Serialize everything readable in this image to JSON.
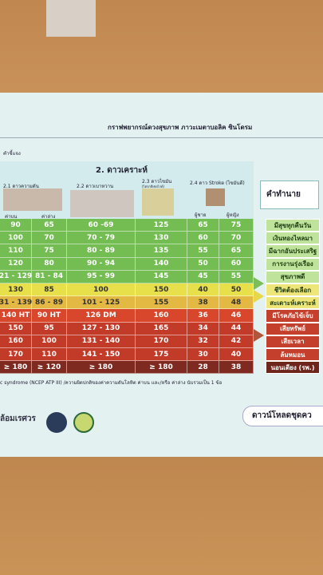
{
  "header": {
    "title": "กราฟพยากรณ์ดวงสุขภาพ ภาวะเมตาบอลิค ซินโดรม",
    "instruction": "คำชี้แจง",
    "section": "2. ดาวเคราะห์",
    "prediction_heading": "คำทำนาย"
  },
  "columns": {
    "bp": "2.1 ดาวความดัน",
    "sugar": "2.2 ดาวเบาหวาน",
    "fat": "2.3 ดาวไขมัน",
    "fat_note": "(ไตรกลีเซอไรด์)",
    "stroke": "2.4 ดาว Stroke (ไขมันดี)",
    "upper": "ค่าบน",
    "lower": "ค่าล่าง",
    "male": "ผู้ชาย",
    "female": "ผู้หญิง"
  },
  "table": {
    "rows": [
      [
        "90",
        "65",
        "60 -69",
        "125",
        "65",
        "75",
        "มีสุขทุกคืนวัน"
      ],
      [
        "100",
        "70",
        "70 - 79",
        "130",
        "60",
        "70",
        "เงินทองไหลมา"
      ],
      [
        "110",
        "75",
        "80 - 89",
        "135",
        "55",
        "65",
        "มีฉากอันประเสริฐ"
      ],
      [
        "120",
        "80",
        "90 - 94",
        "140",
        "50",
        "60",
        "การงานรุ่งเรือง"
      ],
      [
        "21 - 129",
        "81 - 84",
        "95 - 99",
        "145",
        "45",
        "55",
        "สุขภาพดี"
      ],
      [
        "130",
        "85",
        "100",
        "150",
        "40",
        "50",
        "ชีวิตต้องเลือก"
      ],
      [
        "31 - 139",
        "86 - 89",
        "101 - 125",
        "155",
        "38",
        "48",
        "สะเดาะห์เคราะห์"
      ],
      [
        "140 HT",
        "90 HT",
        "126 DM",
        "160",
        "36",
        "46",
        "มีโรคภัยไข้เจ็บ"
      ],
      [
        "150",
        "95",
        "127 - 130",
        "165",
        "34",
        "44",
        "เสียทรัพย์"
      ],
      [
        "160",
        "100",
        "131 - 140",
        "170",
        "32",
        "42",
        "เสียเวลา"
      ],
      [
        "170",
        "110",
        "141 - 150",
        "175",
        "30",
        "40",
        "ล้มหมอน"
      ],
      [
        "≥ 180",
        "≥ 120",
        "≥ 180",
        "≥ 180",
        "28",
        "38",
        "นอนเตียง (รพ.)"
      ]
    ]
  },
  "footer": {
    "note": "c syndrome (NCEP ATP III) /ความผิดปกติของค่าความดันโลหิต ค่าบน และ/หรือ ค่าล่าง นับรวมเป็น 1 ข้อ",
    "org": "ล้อมเรศวร",
    "download": "ดาวน์โหลดชุดคว"
  }
}
